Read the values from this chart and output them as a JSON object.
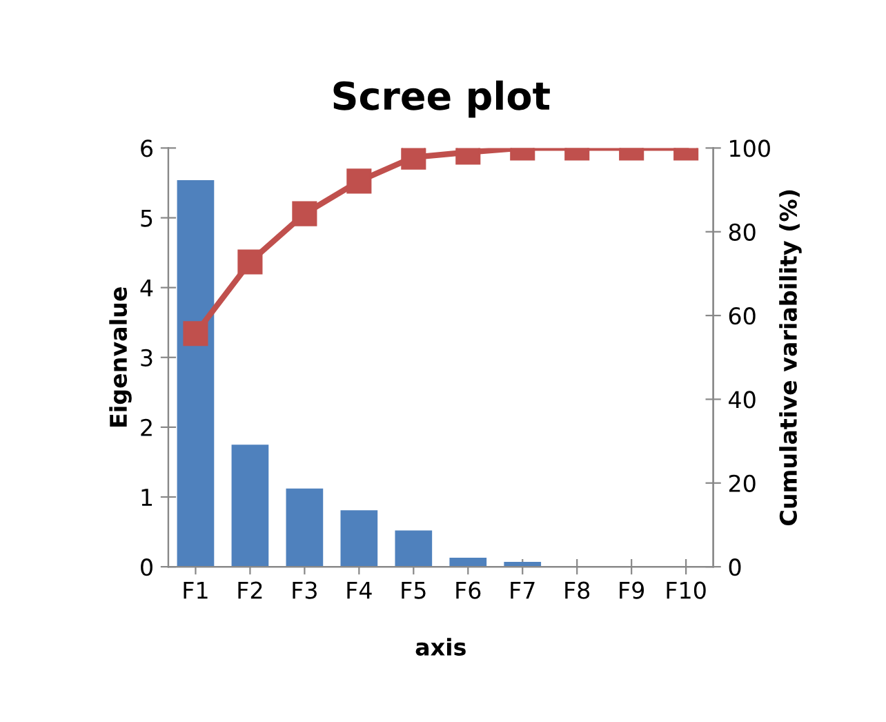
{
  "chart_data": {
    "type": "bar",
    "title": "Scree plot",
    "xlabel": "axis",
    "ylabel": "Eigenvalue",
    "y2label": "Cumulative variability (%)",
    "categories": [
      "F1",
      "F2",
      "F3",
      "F4",
      "F5",
      "F6",
      "F7",
      "F8",
      "F9",
      "F10"
    ],
    "series": [
      {
        "color": "#4f81bd",
        "values": [
          5.54,
          1.75,
          1.12,
          0.81,
          0.52,
          0.13,
          0.07,
          0,
          0,
          0
        ]
      },
      {
        "type": "line",
        "axis": "y2",
        "color": "#c0504d",
        "marker": "square",
        "values": [
          55.7,
          72.8,
          84.3,
          92.1,
          97.8,
          99.0,
          100,
          100,
          100,
          100
        ]
      }
    ],
    "ylim": [
      0,
      6
    ],
    "yticks": [
      0,
      1,
      2,
      3,
      4,
      5,
      6
    ],
    "y2lim": [
      0,
      100
    ],
    "y2ticks": [
      0,
      20,
      40,
      60,
      80,
      100
    ],
    "grid": false,
    "legend": false
  }
}
